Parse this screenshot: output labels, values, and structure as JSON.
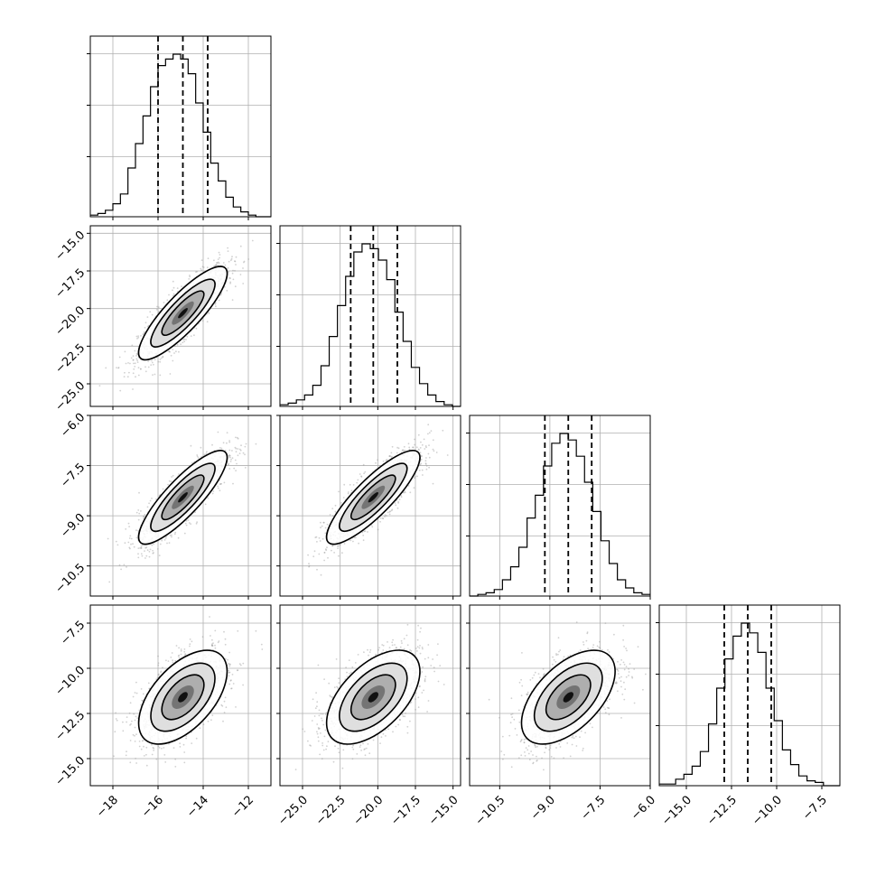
{
  "chart_data": {
    "type": "corner",
    "grid": true,
    "params": [
      {
        "range": [
          -19,
          -11
        ],
        "ticks": [
          "−18",
          "−16",
          "−14",
          "−12"
        ],
        "tickvals": [
          -18,
          -16,
          -14,
          -12
        ],
        "quantiles": [
          -16,
          -14.9,
          -13.8
        ],
        "mean": -14.9,
        "sd": 0.98
      },
      {
        "range": [
          -26.5,
          -14.5
        ],
        "ticks": [
          "−25.0",
          "−22.5",
          "−20.0",
          "−17.5",
          "−15.0"
        ],
        "tickvals": [
          -25,
          -22.5,
          -20,
          -17.5,
          -15
        ],
        "quantiles": [
          -21.8,
          -20.3,
          -18.7
        ],
        "mean": -20.3,
        "sd": 1.55
      },
      {
        "range": [
          -11.4,
          -6.0
        ],
        "ticks": [
          "−10.5",
          "−9.0",
          "−7.5",
          "−6.0"
        ],
        "tickvals": [
          -10.5,
          -9,
          -7.5,
          -6
        ],
        "quantiles": [
          -9.15,
          -8.45,
          -7.75
        ],
        "mean": -8.45,
        "sd": 0.7
      },
      {
        "range": [
          -16.5,
          -6.5
        ],
        "ticks": [
          "−15.0",
          "−12.5",
          "−10.0",
          "−7.5"
        ],
        "tickvals": [
          -15,
          -12.5,
          -10,
          -7.5
        ],
        "quantiles": [
          -12.9,
          -11.6,
          -10.3
        ],
        "mean": -11.6,
        "sd": 1.3
      }
    ],
    "correlations": [
      [
        1.0,
        0.85,
        0.85,
        0.55
      ],
      [
        0.85,
        1.0,
        0.85,
        0.55
      ],
      [
        0.85,
        0.85,
        1.0,
        0.55
      ],
      [
        0.55,
        0.55,
        0.55,
        1.0
      ]
    ],
    "histograms": [
      [
        1,
        2,
        4,
        8,
        14,
        30,
        45,
        62,
        80,
        93,
        97,
        100,
        97,
        88,
        70,
        52,
        33,
        22,
        12,
        6,
        3,
        1,
        0,
        0
      ],
      [
        1,
        2,
        4,
        7,
        13,
        25,
        43,
        62,
        80,
        95,
        100,
        97,
        90,
        78,
        58,
        40,
        24,
        14,
        7,
        3,
        1,
        0
      ],
      [
        0,
        1,
        2,
        4,
        10,
        18,
        30,
        48,
        62,
        80,
        94,
        100,
        96,
        86,
        70,
        52,
        34,
        20,
        10,
        5,
        2,
        1
      ],
      [
        1,
        1,
        4,
        7,
        12,
        21,
        38,
        60,
        78,
        92,
        100,
        94,
        82,
        60,
        40,
        22,
        13,
        6,
        3,
        2,
        0,
        0
      ]
    ],
    "xlabels": [
      "",
      "",
      "",
      ""
    ],
    "ylabels": [
      "",
      "",
      "",
      ""
    ]
  }
}
